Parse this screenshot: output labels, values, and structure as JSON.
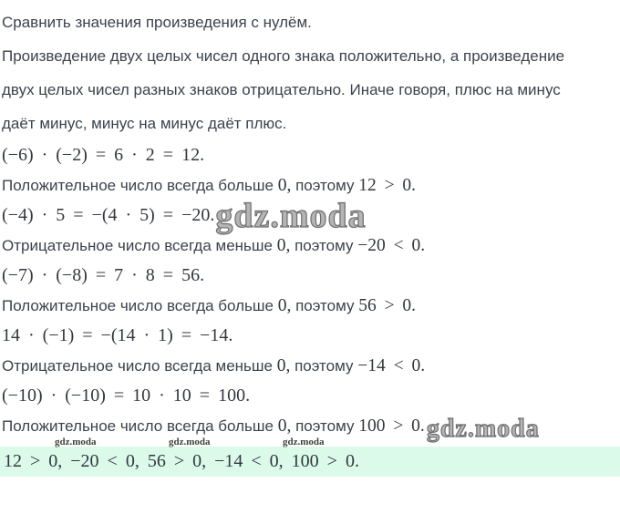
{
  "page": {
    "background": "#ffffff",
    "text_color": "#3c424d",
    "math_color": "#32373f",
    "band_color": "#dbfae9"
  },
  "intro": {
    "title": "Сравнить значения произведения с нулём.",
    "lines": [
      "Произведение двух целых чисел одного знака положительно, а произведение",
      "двух целых чисел разных знаков отрицательно. Иначе говоря, плюс на минус",
      "даёт минус, минус на минус даёт плюс."
    ]
  },
  "steps": [
    {
      "equation": "(−6) · (−2) = 6 · 2 = 12.",
      "comment": [
        {
          "text": "Положительное число всегда больше ",
          "math": false
        },
        {
          "text": "0,",
          "math": true
        },
        {
          "text": " поэтому ",
          "math": false
        },
        {
          "text": "12 > 0.",
          "math": true
        }
      ]
    },
    {
      "equation": "(−4) · 5 = −(4 · 5) = −20.",
      "watermark": {
        "position": "equation",
        "size": "large"
      },
      "comment": [
        {
          "text": "Отрицательное число всегда меньше ",
          "math": false
        },
        {
          "text": "0,",
          "math": true
        },
        {
          "text": " поэтому ",
          "math": false
        },
        {
          "text": "−20 < 0.",
          "math": true
        }
      ]
    },
    {
      "equation": "(−7) · (−8) = 7 · 8 = 56.",
      "comment": [
        {
          "text": "Положительное число всегда больше ",
          "math": false
        },
        {
          "text": "0,",
          "math": true
        },
        {
          "text": " поэтому ",
          "math": false
        },
        {
          "text": "56 > 0.",
          "math": true
        }
      ]
    },
    {
      "equation": "14 · (−1) = −(14 · 1) = −14.",
      "comment": [
        {
          "text": "Отрицательное число всегда меньше ",
          "math": false
        },
        {
          "text": "0,",
          "math": true
        },
        {
          "text": " поэтому ",
          "math": false
        },
        {
          "text": "−14 < 0.",
          "math": true
        }
      ]
    },
    {
      "equation": "(−10) · (−10) = 10 · 10 = 100.",
      "watermark": {
        "position": "comment",
        "size": "medium"
      },
      "comment": [
        {
          "text": "Положительное число всегда больше ",
          "math": false
        },
        {
          "text": "0,",
          "math": true
        },
        {
          "text": " поэтому ",
          "math": false
        },
        {
          "text": "100 > 0.",
          "math": true
        }
      ]
    }
  ],
  "result": {
    "text": "12 > 0, −20 < 0, 56 > 0, −14 < 0, 100 > 0."
  },
  "watermarks": {
    "text": "gdz.moda"
  }
}
